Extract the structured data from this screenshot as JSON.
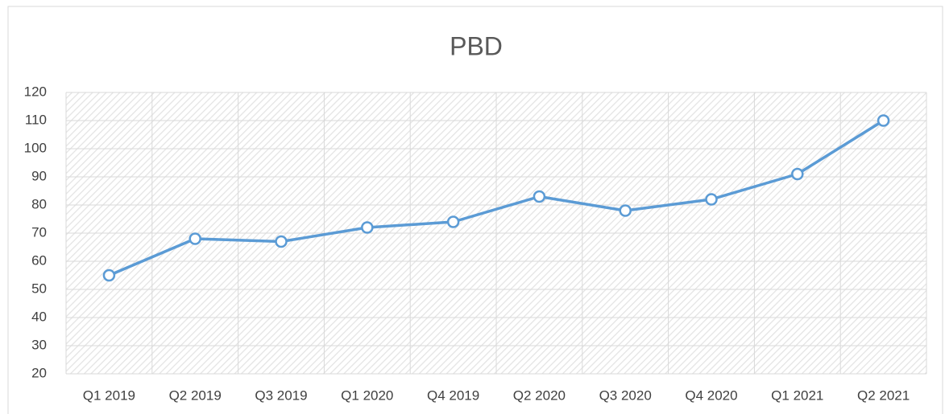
{
  "chart_data": {
    "type": "line",
    "title": "PBD",
    "categories": [
      "Q1 2019",
      "Q2 2019",
      "Q3 2019",
      "Q1 2020",
      "Q4 2019",
      "Q2 2020",
      "Q3 2020",
      "Q4 2020",
      "Q1 2021",
      "Q2 2021"
    ],
    "series": [
      {
        "name": "PBD",
        "color": "#5b9bd5",
        "values": [
          55,
          68,
          67,
          72,
          74,
          83,
          78,
          82,
          91,
          110
        ]
      }
    ],
    "ylim": [
      20,
      120
    ],
    "yticks": [
      20,
      30,
      40,
      50,
      60,
      70,
      80,
      90,
      100,
      110,
      120
    ],
    "grid": true
  }
}
